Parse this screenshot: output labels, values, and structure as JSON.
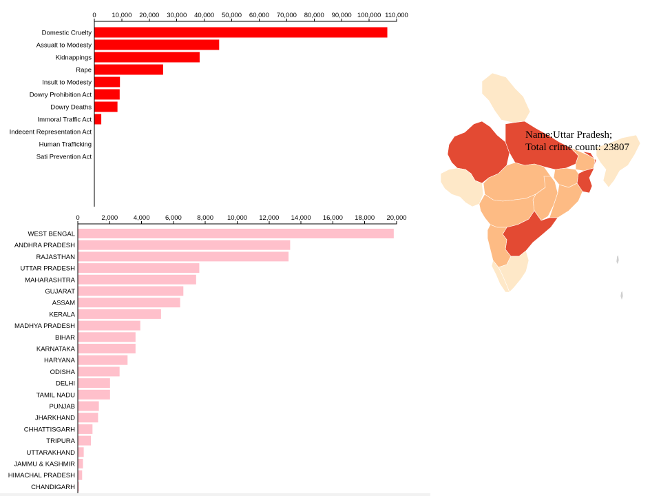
{
  "colors": {
    "chart1_bar": "#ff0000",
    "chart2_bar": "#ffc0cb",
    "map_high": "#e34a33",
    "map_mid": "#fdbb84",
    "map_low": "#fee8c8"
  },
  "chart_data": [
    {
      "type": "bar",
      "orientation": "horizontal",
      "categories": [
        "Domestic Cruelty",
        "Assualt to Modesty",
        "Kidnappings",
        "Rape",
        "Insult to Modesty",
        "Dowry Prohibition Act",
        "Dowry Deaths",
        "Immoral Traffic Act",
        "Indecent Representation Act",
        "Human Trafficking",
        "Sati Prevention Act"
      ],
      "values": [
        106500,
        45300,
        38200,
        24900,
        9200,
        9100,
        8300,
        2400,
        0,
        0,
        0
      ],
      "xlim": [
        0,
        110000
      ],
      "xticks": [
        "0",
        "10,000",
        "20,000",
        "30,000",
        "40,000",
        "50,000",
        "60,000",
        "70,000",
        "80,000",
        "90,000",
        "100,000",
        "110,000"
      ],
      "axis_position": "top",
      "grid": false
    },
    {
      "type": "bar",
      "orientation": "horizontal",
      "categories": [
        "WEST BENGAL",
        "ANDHRA PRADESH",
        "RAJASTHAN",
        "UTTAR PRADESH",
        "MAHARASHTRA",
        "GUJARAT",
        "ASSAM",
        "KERALA",
        "MADHYA PRADESH",
        "BIHAR",
        "KARNATAKA",
        "HARYANA",
        "ODISHA",
        "DELHI",
        "TAMIL NADU",
        "PUNJAB",
        "JHARKHAND",
        "CHHATTISGARH",
        "TRIPURA",
        "UTTARAKHAND",
        "JAMMU & KASHMIR",
        "HIMACHAL PRADESH",
        "CHANDIGARH"
      ],
      "values": [
        19800,
        13300,
        13200,
        7600,
        7400,
        6600,
        6400,
        5200,
        3900,
        3600,
        3600,
        3100,
        2600,
        2000,
        2000,
        1300,
        1250,
        900,
        800,
        350,
        300,
        250,
        50
      ],
      "xlim": [
        0,
        20000
      ],
      "xticks": [
        "0",
        "2,000",
        "4,000",
        "6,000",
        "8,000",
        "10,000",
        "12,000",
        "14,000",
        "16,000",
        "18,000",
        "20,000"
      ],
      "axis_position": "top",
      "grid": false
    }
  ],
  "map": {
    "tooltip_line1": "Name:Uttar Pradesh;",
    "tooltip_line2": "Total crime count: 23807"
  }
}
